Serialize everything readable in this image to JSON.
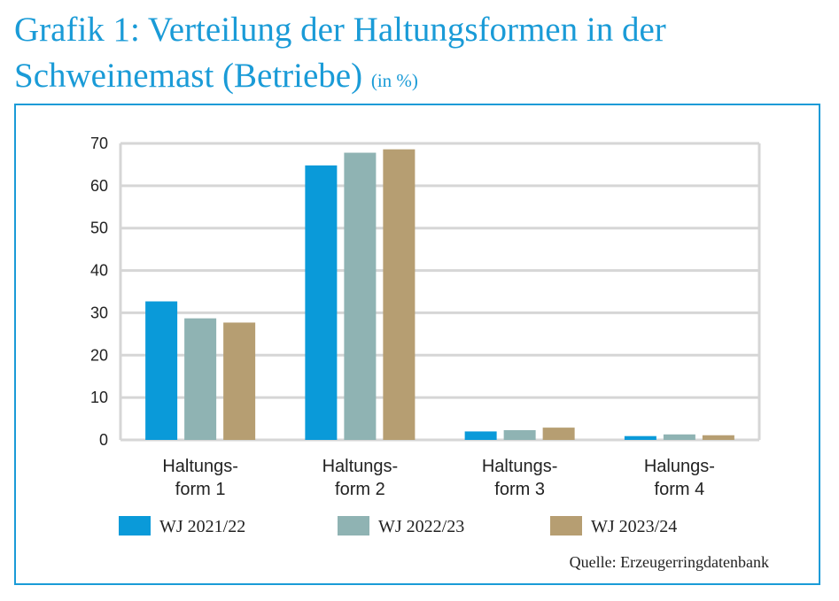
{
  "title": {
    "line1": "Grafik 1: Verteilung der Haltungsformen in der",
    "line2": "Schweinemast (Betriebe)",
    "unit": "(in %)"
  },
  "source": "Quelle: Erzeugerringdatenbank",
  "chart_data": {
    "type": "bar",
    "categories": [
      [
        "Haltungs-",
        "form 1"
      ],
      [
        "Haltungs-",
        "form 2"
      ],
      [
        "Haltungs-",
        "form 3"
      ],
      [
        "Halungs-",
        "form 4"
      ]
    ],
    "series": [
      {
        "name": "WJ 2021/22",
        "color": "#0a9ad9",
        "values": [
          32.7,
          64.8,
          2.0,
          0.9
        ]
      },
      {
        "name": "WJ 2022/23",
        "color": "#8fb3b3",
        "values": [
          28.7,
          67.8,
          2.3,
          1.3
        ]
      },
      {
        "name": "WJ 2023/24",
        "color": "#b69e72",
        "values": [
          27.7,
          68.6,
          2.9,
          1.1
        ]
      }
    ],
    "ylim": [
      0,
      70
    ],
    "yticks": [
      0,
      10,
      20,
      30,
      40,
      50,
      60,
      70
    ],
    "grid": true,
    "legend": "bottom"
  }
}
